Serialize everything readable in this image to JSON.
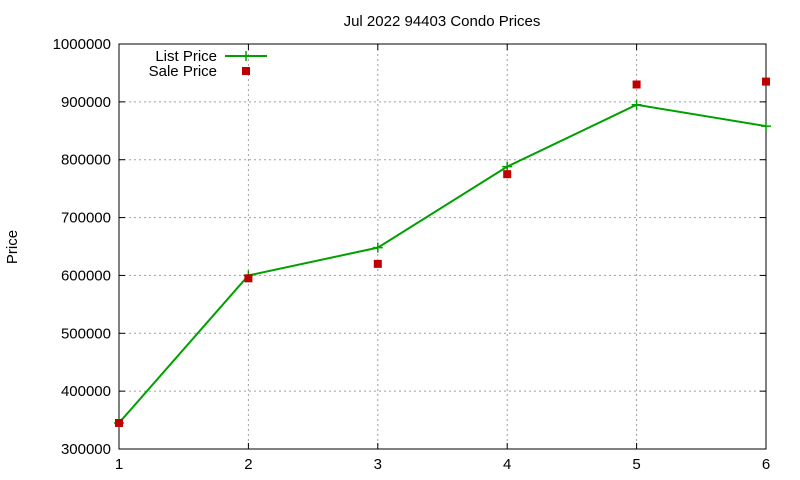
{
  "chart_data": {
    "type": "line",
    "title": "Jul 2022 94403 Condo Prices",
    "xlabel": "",
    "ylabel": "Price",
    "x": [
      1,
      2,
      3,
      4,
      5,
      6
    ],
    "xlim": [
      1,
      6
    ],
    "ylim": [
      300000,
      1000000
    ],
    "xticks": [
      1,
      2,
      3,
      4,
      5,
      6
    ],
    "yticks": [
      300000,
      400000,
      500000,
      600000,
      700000,
      800000,
      900000,
      1000000
    ],
    "grid": true,
    "legend_position": "top-left",
    "series": [
      {
        "name": "List Price",
        "style": "line-points",
        "marker": "plus",
        "color": "#00a000",
        "x": [
          1,
          2,
          3,
          4,
          5,
          6
        ],
        "values": [
          345000,
          600000,
          648000,
          788000,
          895000,
          858000
        ]
      },
      {
        "name": "Sale Price",
        "style": "points",
        "marker": "square",
        "color": "#c00000",
        "x": [
          1,
          2,
          3,
          4,
          5,
          6
        ],
        "values": [
          345000,
          595000,
          620000,
          775000,
          930000,
          935000
        ]
      }
    ]
  }
}
